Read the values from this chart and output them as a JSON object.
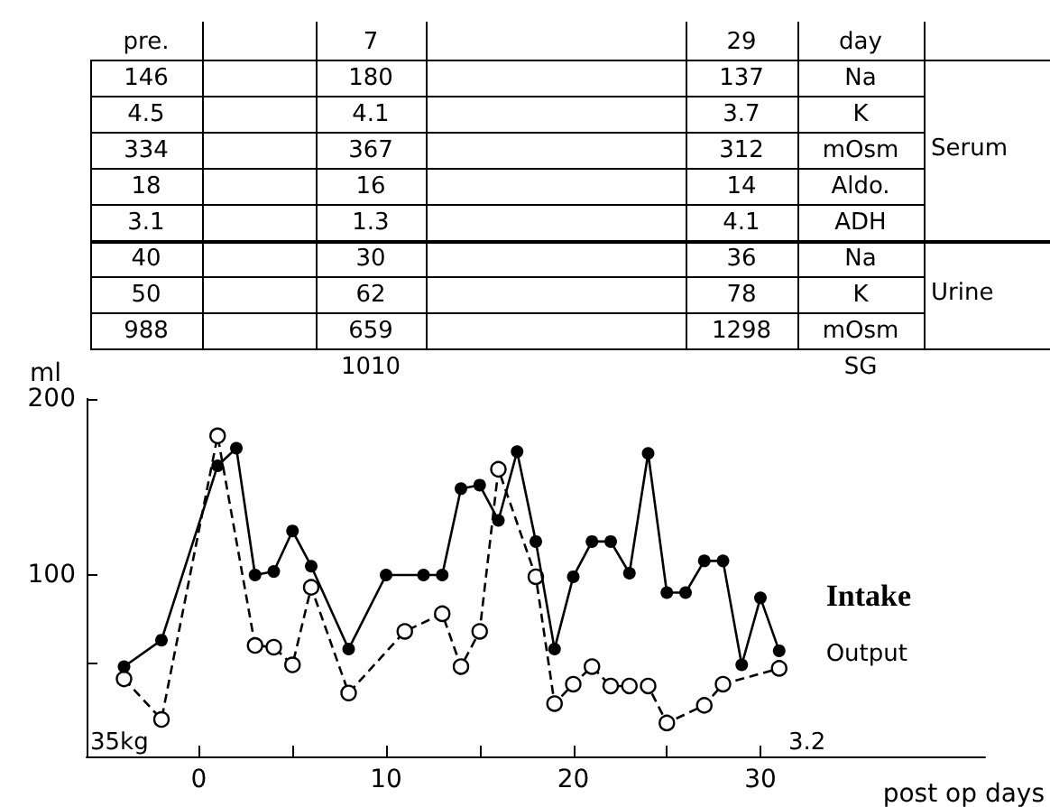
{
  "chart_data": {
    "type": "line",
    "xlabel": "post op days",
    "ylabel": "ml",
    "xlim": [
      -6,
      42
    ],
    "xticks": [
      0,
      {
        "value": 5,
        "label": null
      },
      10,
      {
        "value": 15,
        "label": null
      },
      20,
      {
        "value": 25,
        "label": null
      },
      30
    ],
    "ylim": [
      -3,
      200
    ],
    "yticks": [
      {
        "value": 50,
        "label": null
      },
      100,
      200
    ],
    "grid": false,
    "legend": false,
    "marker": "circle",
    "series": [
      {
        "name": "Intake",
        "color": "#000000",
        "line_style": "solid",
        "x": [
          -4,
          -2,
          1,
          2,
          3,
          4,
          5,
          6,
          8,
          10,
          12,
          13,
          14,
          15,
          16,
          17,
          18,
          19,
          20,
          21,
          22,
          23,
          24,
          25,
          26,
          27,
          28,
          29,
          30,
          31
        ],
        "values": [
          48,
          63,
          162,
          172,
          100,
          102,
          125,
          105,
          58,
          100,
          100,
          100,
          149,
          151,
          131,
          170,
          119,
          58,
          99,
          119,
          119,
          101,
          169,
          90,
          90,
          108,
          108,
          49,
          87,
          57
        ]
      },
      {
        "name": "Output",
        "color": "#000000",
        "line_style": "dashed",
        "x": [
          -4,
          -2,
          1,
          3,
          4,
          5,
          6,
          8,
          11,
          13,
          14,
          15,
          16,
          18,
          19,
          20,
          21,
          22,
          23,
          24,
          25,
          27,
          28,
          31
        ],
        "values": [
          41,
          18,
          179,
          60,
          59,
          49,
          93,
          33,
          68,
          78,
          48,
          68,
          160,
          99,
          27,
          38,
          48,
          37,
          37,
          37,
          16,
          26,
          38,
          47
        ]
      }
    ],
    "annotations": [
      "pre.",
      "7",
      "29",
      "day",
      "146",
      "180",
      "137",
      "Na",
      "4.5",
      "4.1",
      "3.7",
      "K",
      "334",
      "367",
      "312",
      "mOsm",
      "18",
      "16",
      "14",
      "Aldo.",
      "3.1",
      "1.3",
      "4.1",
      "ADH",
      "40",
      "30",
      "36",
      "Na",
      "50",
      "62",
      "78",
      "K",
      "988",
      "659",
      "1298",
      "mOsm",
      "1010",
      "SG",
      "Serum",
      "Urine",
      "35kg",
      "3.2"
    ]
  }
}
